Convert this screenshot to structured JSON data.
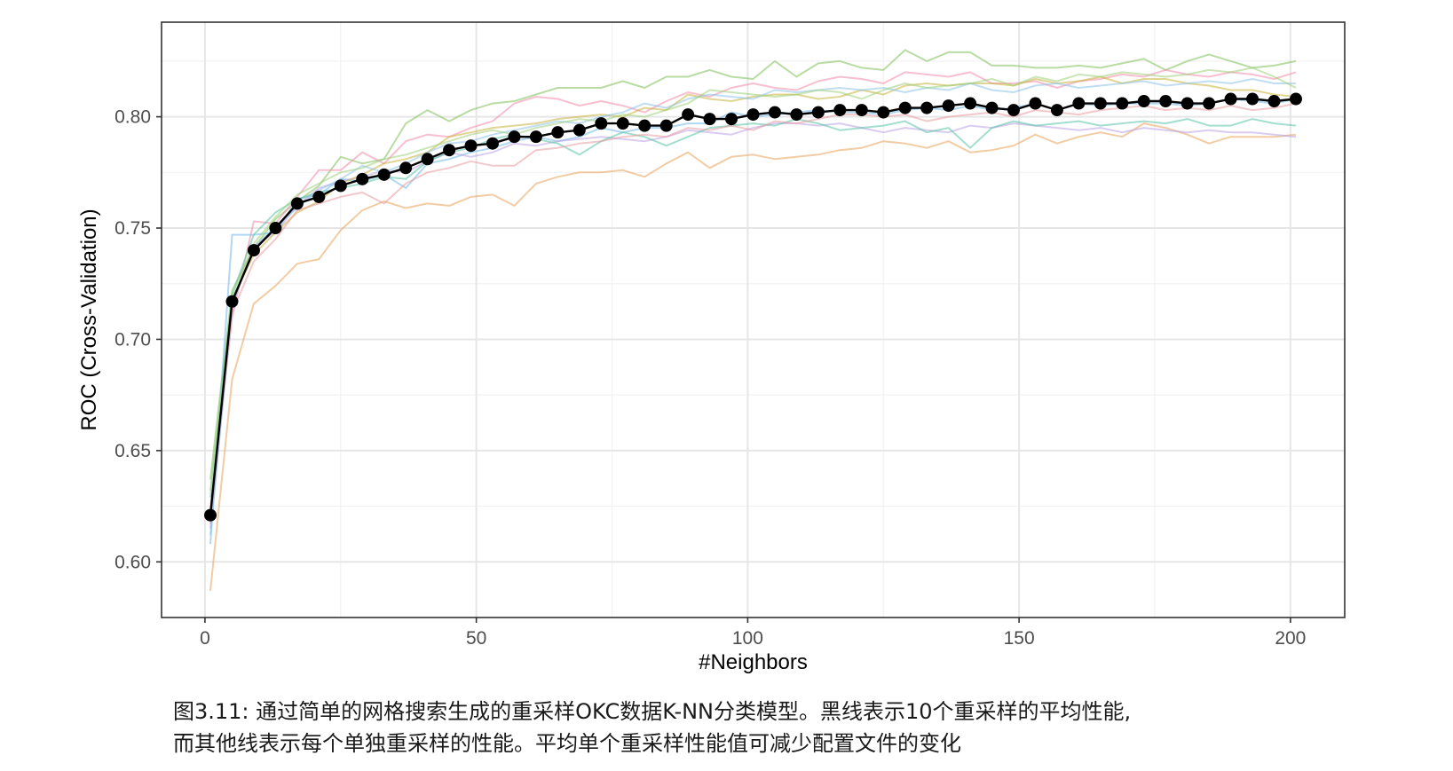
{
  "chart_data": {
    "type": "line",
    "xlabel": "#Neighbors",
    "ylabel": "ROC (Cross-Validation)",
    "xlim": [
      -8,
      210
    ],
    "ylim": [
      0.575,
      0.8425
    ],
    "x_ticks": [
      0,
      50,
      100,
      150,
      200
    ],
    "y_ticks": [
      0.6,
      0.65,
      0.7,
      0.75,
      0.8
    ],
    "x_tick_labels": [
      "0",
      "50",
      "100",
      "150",
      "200"
    ],
    "y_tick_labels": [
      "0.60",
      "0.65",
      "0.70",
      "0.75",
      "0.80"
    ],
    "grid": true,
    "legend": "none",
    "mean_color": "#000000",
    "resample_colors": [
      "#e8a35a",
      "#7fbf5a",
      "#f08aa8",
      "#6fb8e8",
      "#b9a3e3",
      "#57c2a6",
      "#c9b23a",
      "#e89aa0",
      "#8cc3e8",
      "#9fd07a"
    ],
    "mean": {
      "x": [
        1,
        5,
        9,
        13,
        17,
        21,
        25,
        29,
        33,
        37,
        41,
        45,
        49,
        53,
        57,
        61,
        65,
        69,
        73,
        77,
        81,
        85,
        89,
        93,
        97,
        101,
        105,
        109,
        113,
        117,
        121,
        125,
        129,
        133,
        137,
        141,
        145,
        149,
        153,
        157,
        161,
        165,
        169,
        173,
        177,
        181,
        185,
        189,
        193,
        197,
        201
      ],
      "values": [
        0.621,
        0.717,
        0.74,
        0.75,
        0.761,
        0.764,
        0.769,
        0.772,
        0.774,
        0.777,
        0.781,
        0.785,
        0.787,
        0.788,
        0.791,
        0.791,
        0.793,
        0.794,
        0.797,
        0.797,
        0.796,
        0.796,
        0.801,
        0.799,
        0.799,
        0.801,
        0.802,
        0.801,
        0.802,
        0.803,
        0.803,
        0.802,
        0.804,
        0.804,
        0.805,
        0.806,
        0.804,
        0.803,
        0.806,
        0.803,
        0.806,
        0.806,
        0.806,
        0.807,
        0.807,
        0.806,
        0.806,
        0.808,
        0.808,
        0.807,
        0.808
      ]
    },
    "resamples": [
      {
        "values": [
          0.587,
          0.682,
          0.716,
          0.724,
          0.734,
          0.736,
          0.749,
          0.758,
          0.762,
          0.759,
          0.761,
          0.76,
          0.764,
          0.765,
          0.76,
          0.77,
          0.773,
          0.775,
          0.775,
          0.776,
          0.773,
          0.779,
          0.784,
          0.777,
          0.782,
          0.783,
          0.781,
          0.782,
          0.783,
          0.785,
          0.786,
          0.789,
          0.788,
          0.786,
          0.789,
          0.784,
          0.785,
          0.787,
          0.792,
          0.788,
          0.791,
          0.793,
          0.791,
          0.797,
          0.795,
          0.792,
          0.788,
          0.791,
          0.791,
          0.791,
          0.792
        ]
      },
      {
        "values": [
          0.637,
          0.722,
          0.741,
          0.754,
          0.762,
          0.769,
          0.782,
          0.779,
          0.781,
          0.797,
          0.803,
          0.798,
          0.803,
          0.806,
          0.807,
          0.81,
          0.813,
          0.813,
          0.813,
          0.816,
          0.813,
          0.818,
          0.818,
          0.821,
          0.818,
          0.817,
          0.825,
          0.818,
          0.824,
          0.825,
          0.822,
          0.821,
          0.83,
          0.825,
          0.829,
          0.829,
          0.823,
          0.823,
          0.822,
          0.822,
          0.823,
          0.822,
          0.824,
          0.826,
          0.821,
          0.825,
          0.828,
          0.825,
          0.822,
          0.823,
          0.825
        ]
      },
      {
        "values": [
          0.624,
          0.71,
          0.753,
          0.752,
          0.764,
          0.776,
          0.776,
          0.784,
          0.779,
          0.789,
          0.792,
          0.791,
          0.795,
          0.798,
          0.806,
          0.809,
          0.808,
          0.805,
          0.807,
          0.805,
          0.802,
          0.807,
          0.811,
          0.809,
          0.813,
          0.815,
          0.813,
          0.812,
          0.816,
          0.818,
          0.817,
          0.815,
          0.82,
          0.819,
          0.818,
          0.82,
          0.815,
          0.815,
          0.816,
          0.813,
          0.816,
          0.817,
          0.819,
          0.818,
          0.821,
          0.819,
          0.818,
          0.82,
          0.819,
          0.817,
          0.82
        ]
      },
      {
        "values": [
          0.608,
          0.747,
          0.747,
          0.748,
          0.763,
          0.765,
          0.772,
          0.771,
          0.774,
          0.768,
          0.779,
          0.781,
          0.784,
          0.786,
          0.789,
          0.791,
          0.789,
          0.791,
          0.795,
          0.793,
          0.795,
          0.795,
          0.797,
          0.797,
          0.802,
          0.8,
          0.801,
          0.802,
          0.803,
          0.802,
          0.802,
          0.801,
          0.803,
          0.804,
          0.803,
          0.805,
          0.803,
          0.804,
          0.806,
          0.803,
          0.806,
          0.805,
          0.806,
          0.806,
          0.806,
          0.805,
          0.806,
          0.808,
          0.807,
          0.806,
          0.808
        ]
      },
      {
        "values": [
          0.615,
          0.715,
          0.742,
          0.748,
          0.76,
          0.768,
          0.771,
          0.773,
          0.776,
          0.775,
          0.78,
          0.784,
          0.782,
          0.784,
          0.788,
          0.787,
          0.789,
          0.79,
          0.791,
          0.79,
          0.789,
          0.791,
          0.794,
          0.793,
          0.792,
          0.795,
          0.797,
          0.797,
          0.796,
          0.797,
          0.795,
          0.793,
          0.795,
          0.794,
          0.793,
          0.796,
          0.795,
          0.797,
          0.796,
          0.795,
          0.794,
          0.795,
          0.793,
          0.795,
          0.794,
          0.793,
          0.794,
          0.793,
          0.793,
          0.792,
          0.791
        ]
      },
      {
        "values": [
          0.629,
          0.72,
          0.747,
          0.757,
          0.763,
          0.766,
          0.768,
          0.77,
          0.773,
          0.772,
          0.78,
          0.784,
          0.786,
          0.79,
          0.792,
          0.79,
          0.788,
          0.783,
          0.789,
          0.793,
          0.791,
          0.787,
          0.791,
          0.795,
          0.796,
          0.797,
          0.796,
          0.799,
          0.797,
          0.794,
          0.795,
          0.796,
          0.798,
          0.793,
          0.795,
          0.786,
          0.795,
          0.798,
          0.796,
          0.797,
          0.798,
          0.796,
          0.797,
          0.798,
          0.797,
          0.799,
          0.796,
          0.796,
          0.799,
          0.797,
          0.796
        ]
      },
      {
        "values": [
          0.62,
          0.718,
          0.738,
          0.748,
          0.757,
          0.762,
          0.77,
          0.774,
          0.779,
          0.781,
          0.784,
          0.791,
          0.793,
          0.795,
          0.796,
          0.797,
          0.799,
          0.8,
          0.801,
          0.8,
          0.804,
          0.803,
          0.81,
          0.808,
          0.807,
          0.809,
          0.81,
          0.81,
          0.808,
          0.809,
          0.812,
          0.81,
          0.814,
          0.815,
          0.814,
          0.815,
          0.815,
          0.814,
          0.817,
          0.815,
          0.816,
          0.818,
          0.815,
          0.817,
          0.817,
          0.815,
          0.814,
          0.812,
          0.812,
          0.81,
          0.809
        ]
      },
      {
        "values": [
          0.617,
          0.712,
          0.735,
          0.745,
          0.758,
          0.761,
          0.764,
          0.766,
          0.761,
          0.77,
          0.775,
          0.777,
          0.78,
          0.778,
          0.778,
          0.785,
          0.786,
          0.788,
          0.789,
          0.791,
          0.792,
          0.791,
          0.795,
          0.794,
          0.796,
          0.794,
          0.798,
          0.797,
          0.799,
          0.801,
          0.801,
          0.8,
          0.801,
          0.798,
          0.8,
          0.801,
          0.802,
          0.8,
          0.803,
          0.802,
          0.801,
          0.803,
          0.804,
          0.805,
          0.803,
          0.804,
          0.803,
          0.805,
          0.803,
          0.804,
          0.806
        ]
      },
      {
        "values": [
          0.612,
          0.716,
          0.741,
          0.751,
          0.759,
          0.767,
          0.772,
          0.778,
          0.775,
          0.779,
          0.784,
          0.788,
          0.789,
          0.792,
          0.794,
          0.796,
          0.798,
          0.797,
          0.8,
          0.802,
          0.806,
          0.804,
          0.808,
          0.81,
          0.809,
          0.808,
          0.812,
          0.811,
          0.812,
          0.813,
          0.812,
          0.813,
          0.811,
          0.813,
          0.812,
          0.815,
          0.812,
          0.811,
          0.814,
          0.815,
          0.813,
          0.814,
          0.815,
          0.816,
          0.814,
          0.815,
          0.816,
          0.815,
          0.817,
          0.815,
          0.815
        ]
      },
      {
        "values": [
          0.632,
          0.719,
          0.743,
          0.755,
          0.765,
          0.77,
          0.775,
          0.777,
          0.781,
          0.783,
          0.786,
          0.789,
          0.792,
          0.794,
          0.792,
          0.795,
          0.797,
          0.799,
          0.798,
          0.801,
          0.8,
          0.803,
          0.806,
          0.812,
          0.811,
          0.81,
          0.809,
          0.81,
          0.812,
          0.811,
          0.808,
          0.812,
          0.815,
          0.813,
          0.814,
          0.815,
          0.817,
          0.814,
          0.818,
          0.816,
          0.819,
          0.818,
          0.82,
          0.819,
          0.818,
          0.819,
          0.821,
          0.82,
          0.822,
          0.818,
          0.813
        ]
      }
    ]
  },
  "caption": {
    "line1": "图3.11: 通过简单的网格搜索生成的重采样OKC数据K-NN分类模型。黑线表示10个重采样的平均性能,",
    "line2": "而其他线表示每个单独重采样的性能。平均单个重采样性能值可减少配置文件的变化"
  }
}
